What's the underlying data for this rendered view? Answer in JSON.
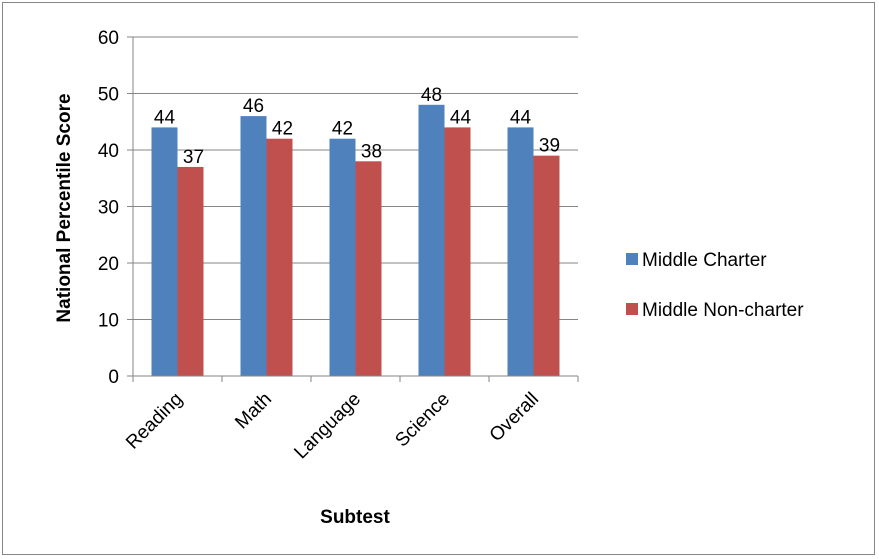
{
  "chart_data": {
    "type": "bar",
    "title": "",
    "xlabel": "Subtest",
    "ylabel": "National Percentile Score",
    "categories": [
      "Reading",
      "Math",
      "Language",
      "Science",
      "Overall"
    ],
    "series": [
      {
        "name": "Middle Charter",
        "values": [
          44,
          46,
          42,
          48,
          44
        ],
        "color": "#4f81bd"
      },
      {
        "name": "Middle Non-charter",
        "values": [
          37,
          42,
          38,
          44,
          39
        ],
        "color": "#c0504d"
      }
    ],
    "ylim": [
      0,
      60
    ],
    "yticks": [
      0,
      10,
      20,
      30,
      40,
      50,
      60
    ],
    "grid": true,
    "legend": "right",
    "data_labels": true
  }
}
